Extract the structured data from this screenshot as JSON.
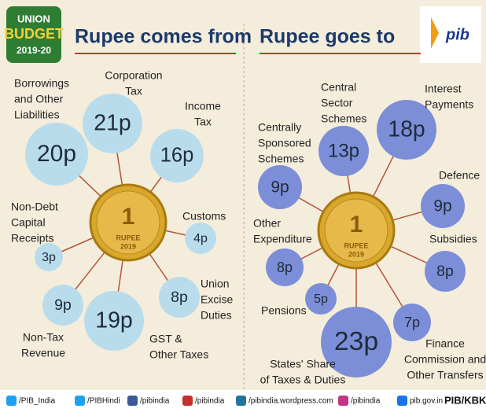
{
  "logo": {
    "line1": "UNION",
    "line2": "BUDGET",
    "line3": "2019-20"
  },
  "pib_logo": "pib",
  "sections": [
    {
      "title": "Rupee comes from",
      "items": [
        {
          "label": [
            "Borrowings",
            "and Other",
            "Liabilities"
          ],
          "value": "20p"
        },
        {
          "label": [
            "Corporation",
            "Tax"
          ],
          "value": "21p"
        },
        {
          "label": [
            "Income",
            "Tax"
          ],
          "value": "16p"
        },
        {
          "label": [
            "Customs"
          ],
          "value": "4p"
        },
        {
          "label": [
            "Union",
            "Excise",
            "Duties"
          ],
          "value": "8p"
        },
        {
          "label": [
            "GST &",
            "Other Taxes"
          ],
          "value": "19p"
        },
        {
          "label": [
            "Non-Tax",
            "Revenue"
          ],
          "value": "9p"
        },
        {
          "label": [
            "Non-Debt",
            "Capital",
            "Receipts"
          ],
          "value": "3p"
        }
      ]
    },
    {
      "title": "Rupee goes to",
      "items": [
        {
          "label": [
            "Centrally",
            "Sponsored",
            "Schemes"
          ],
          "value": "9p"
        },
        {
          "label": [
            "Central",
            "Sector",
            "Schemes"
          ],
          "value": "13p"
        },
        {
          "label": [
            "Interest",
            "Payments"
          ],
          "value": "18p"
        },
        {
          "label": [
            "Defence"
          ],
          "value": "9p"
        },
        {
          "label": [
            "Subsidies"
          ],
          "value": "8p"
        },
        {
          "label": [
            "Finance",
            "Commission and",
            "Other Transfers"
          ],
          "value": "7p"
        },
        {
          "label": [
            "States' Share",
            "of Taxes & Duties"
          ],
          "value": "23p"
        },
        {
          "label": [
            "Pensions"
          ],
          "value": "5p"
        },
        {
          "label": [
            "Other",
            "Expenditure"
          ],
          "value": "8p"
        }
      ]
    }
  ],
  "coin": {
    "numeral": "1",
    "word": "RUPEE",
    "year": "2019"
  },
  "footer": [
    "/PIB_India",
    "/PIBHindi",
    "/pibindia",
    "/pibindia",
    "/pibindia.wordpress.com",
    "/pibindia",
    "pib.gov.in",
    "PIB/KBK"
  ]
}
